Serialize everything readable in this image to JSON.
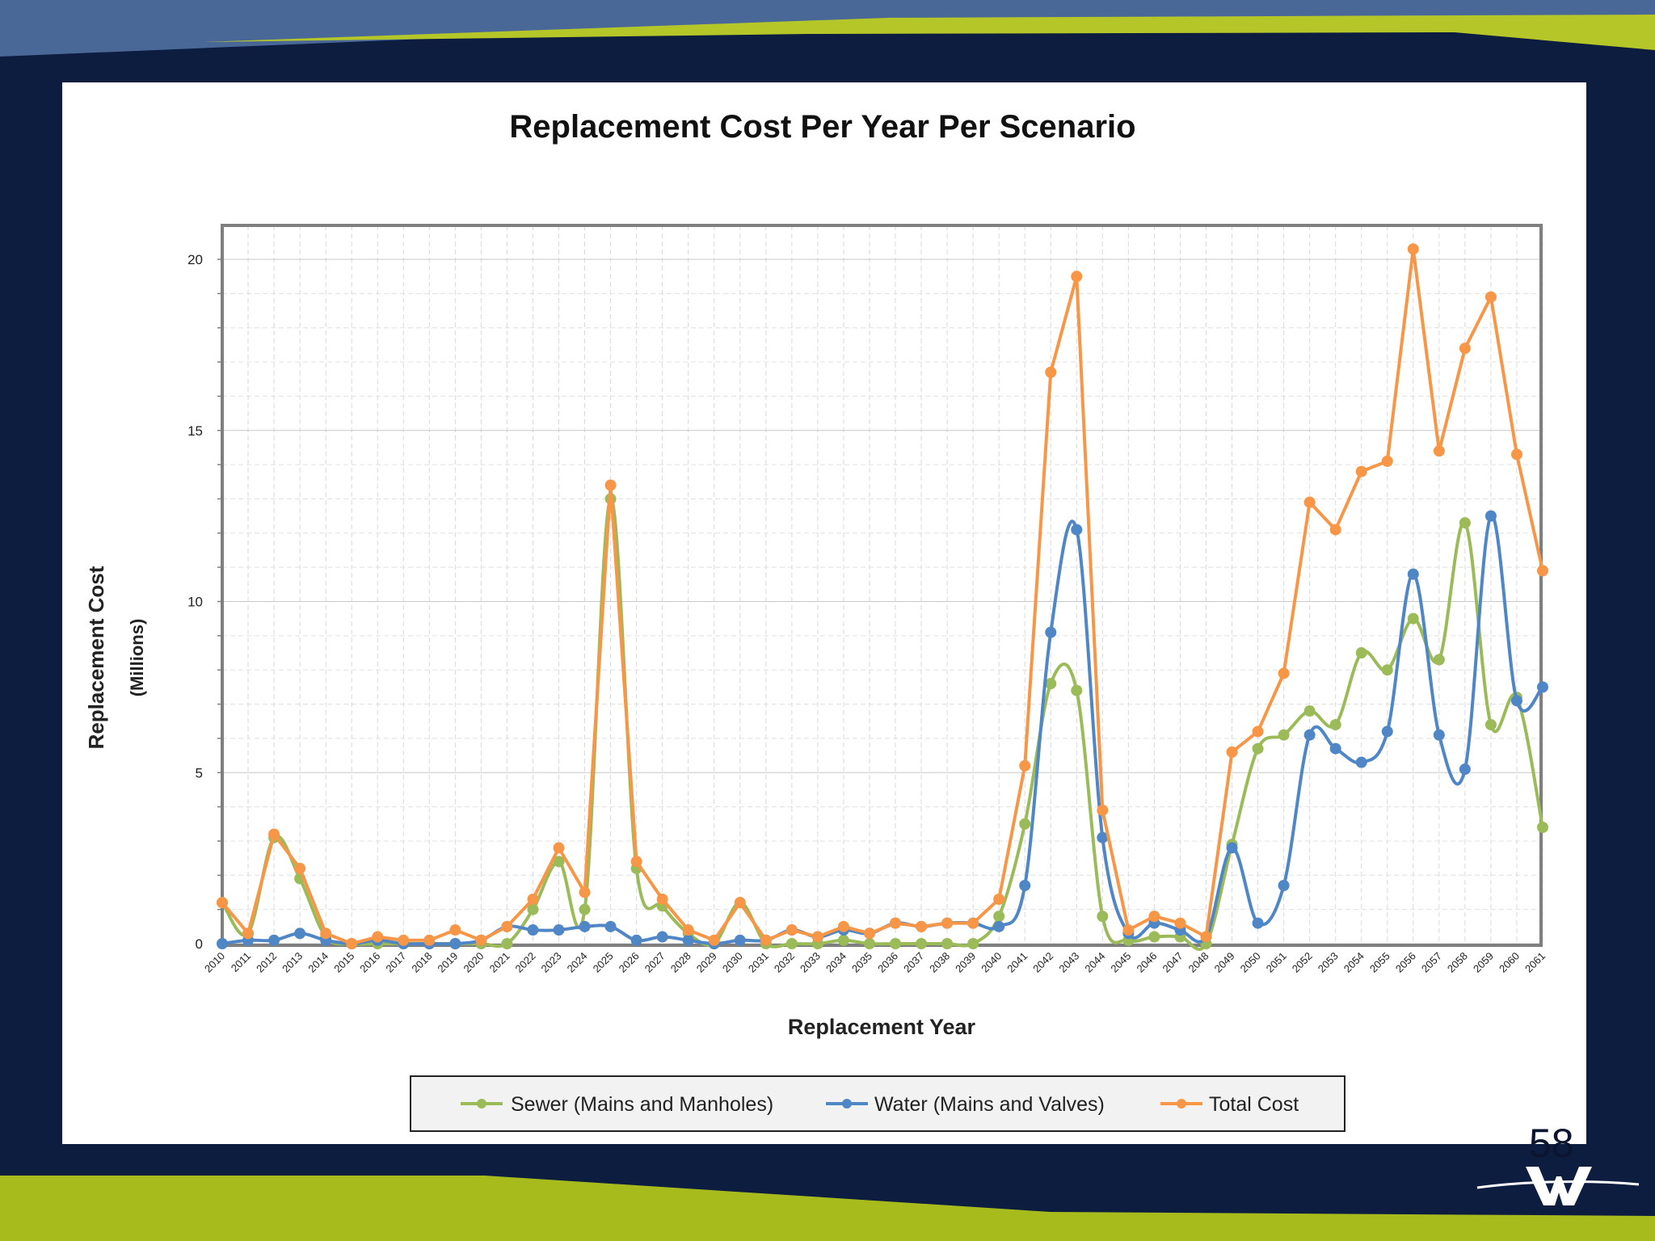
{
  "slide": {
    "number": "58",
    "colors": {
      "navy": "#0c1d3f",
      "green": "#a8bb1c",
      "blue": "#4a6897"
    }
  },
  "logo": {
    "icon": "w-logo-icon"
  },
  "chart_data": {
    "type": "line",
    "title": "Replacement Cost Per Year Per Scenario",
    "xlabel": "Replacement Year",
    "ylabel": "Replacement Cost",
    "ylabel_sub": "(Millions)",
    "ylim": [
      0,
      20
    ],
    "yticks": [
      0,
      5,
      10,
      15,
      20
    ],
    "grid": true,
    "smoothed": true,
    "legend_position": "bottom",
    "x": [
      "2010",
      "2011",
      "2012",
      "2013",
      "2014",
      "2015",
      "2016",
      "2017",
      "2018",
      "2019",
      "2020",
      "2021",
      "2022",
      "2023",
      "2024",
      "2025",
      "2026",
      "2027",
      "2028",
      "2029",
      "2030",
      "2031",
      "2032",
      "2033",
      "2034",
      "2035",
      "2036",
      "2037",
      "2038",
      "2039",
      "2040",
      "2041",
      "2042",
      "2043",
      "2044",
      "2045",
      "2046",
      "2047",
      "2048",
      "2049",
      "2050",
      "2051",
      "2052",
      "2053",
      "2054",
      "2055",
      "2056",
      "2057",
      "2058",
      "2059",
      "2060",
      "2061"
    ],
    "series": [
      {
        "name": "Sewer (Mains and Manholes)",
        "color": "#9bbb59",
        "values": [
          1.2,
          0.3,
          3.1,
          1.9,
          0.2,
          0.0,
          0.0,
          0.0,
          0.0,
          0.0,
          0.0,
          0.0,
          1.0,
          2.4,
          1.0,
          13.0,
          2.2,
          1.1,
          0.3,
          0.0,
          1.2,
          0.0,
          0.0,
          0.0,
          0.1,
          0.0,
          0.0,
          0.0,
          0.0,
          0.0,
          0.8,
          3.5,
          7.6,
          7.4,
          0.8,
          0.1,
          0.2,
          0.2,
          0.0,
          2.9,
          5.7,
          6.1,
          6.8,
          6.4,
          8.5,
          8.0,
          9.5,
          8.3,
          12.3,
          6.4,
          7.2,
          3.4
        ]
      },
      {
        "name": "Water (Mains and Valves)",
        "color": "#4f86c6",
        "values": [
          0.0,
          0.1,
          0.1,
          0.3,
          0.1,
          0.0,
          0.1,
          0.0,
          0.0,
          0.0,
          0.1,
          0.5,
          0.4,
          0.4,
          0.5,
          0.5,
          0.1,
          0.2,
          0.1,
          0.0,
          0.1,
          0.1,
          0.4,
          0.2,
          0.4,
          0.3,
          0.6,
          0.5,
          0.6,
          0.6,
          0.5,
          1.7,
          9.1,
          12.1,
          3.1,
          0.3,
          0.6,
          0.4,
          0.2,
          2.8,
          0.6,
          1.7,
          6.1,
          5.7,
          5.3,
          6.2,
          10.8,
          6.1,
          5.1,
          12.5,
          7.1,
          7.5
        ]
      },
      {
        "name": "Total Cost",
        "color": "#f79646",
        "values": [
          1.2,
          0.3,
          3.2,
          2.2,
          0.3,
          0.0,
          0.2,
          0.1,
          0.1,
          0.4,
          0.1,
          0.5,
          1.3,
          2.8,
          1.5,
          13.4,
          2.4,
          1.3,
          0.4,
          0.1,
          1.2,
          0.1,
          0.4,
          0.2,
          0.5,
          0.3,
          0.6,
          0.5,
          0.6,
          0.6,
          1.3,
          5.2,
          16.7,
          19.5,
          3.9,
          0.4,
          0.8,
          0.6,
          0.2,
          5.6,
          6.2,
          7.9,
          12.9,
          12.1,
          13.8,
          14.1,
          20.3,
          14.4,
          17.4,
          18.9,
          14.3,
          10.9
        ]
      }
    ]
  }
}
